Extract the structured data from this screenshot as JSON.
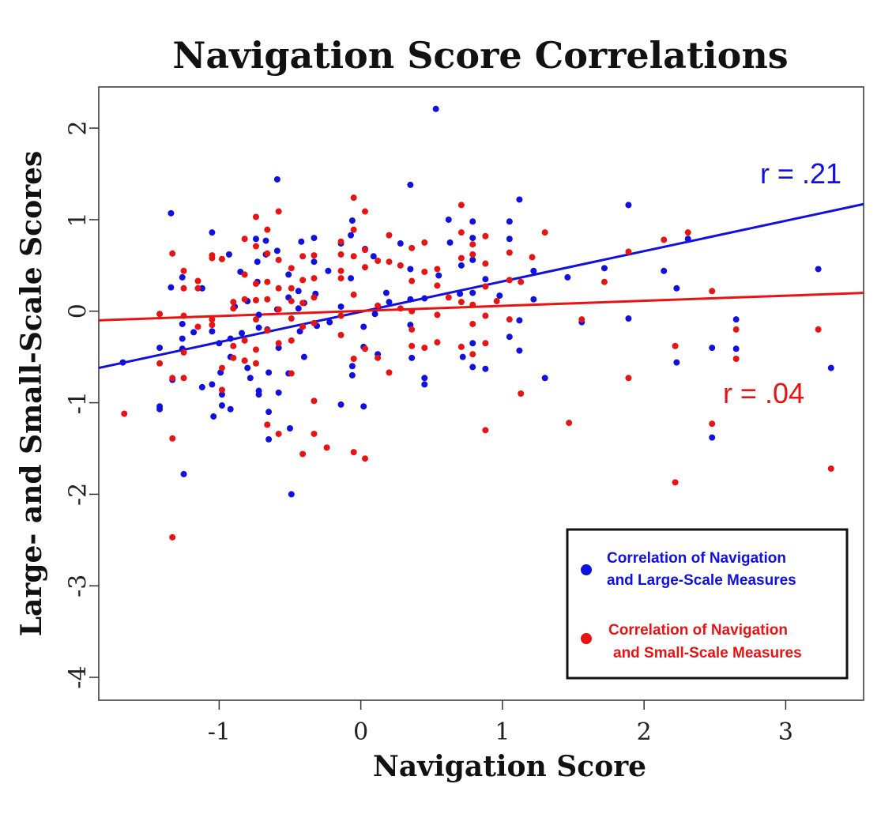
{
  "chart_data": {
    "type": "scatter",
    "title": "Navigation Score Correlations",
    "xlabel": "Navigation Score",
    "ylabel": "Large- and Small-Scale Scores",
    "xlim": [
      -1.85,
      3.55
    ],
    "ylim": [
      -4.25,
      2.45
    ],
    "xticks": [
      -1,
      0,
      1,
      2,
      3
    ],
    "yticks": [
      -4,
      -3,
      -2,
      -1,
      0,
      1,
      2
    ],
    "grid": false,
    "legend_position": "bottom-right",
    "colors": {
      "large": "#1010e0",
      "small": "#e81414"
    },
    "series": [
      {
        "name": "Correlation of Navigation and Large-Scale Measures",
        "legend_lines": [
          "Correlation of Navigation",
          "and Large-Scale Measures"
        ],
        "color": "#1010e0",
        "annotation": "r = .21",
        "fit": {
          "x": [
            -1.85,
            3.55
          ],
          "y": [
            -0.62,
            1.17
          ]
        },
        "points": [
          [
            -1.68,
            -0.56
          ],
          [
            -1.42,
            -0.4
          ],
          [
            -1.42,
            -1.04
          ],
          [
            -1.42,
            -1.07
          ],
          [
            -1.34,
            1.07
          ],
          [
            -1.34,
            0.26
          ],
          [
            -1.33,
            -0.75
          ],
          [
            -1.26,
            0.37
          ],
          [
            -1.26,
            -0.14
          ],
          [
            -1.26,
            -0.3
          ],
          [
            -1.26,
            -0.41
          ],
          [
            -1.25,
            -1.78
          ],
          [
            -1.18,
            -0.23
          ],
          [
            -1.12,
            0.25
          ],
          [
            -1.12,
            -0.83
          ],
          [
            -1.05,
            0.86
          ],
          [
            -1.05,
            -0.22
          ],
          [
            -1.05,
            -0.8
          ],
          [
            -1.04,
            -1.15
          ],
          [
            -1.0,
            -0.35
          ],
          [
            -0.99,
            -0.67
          ],
          [
            -0.98,
            -0.91
          ],
          [
            -0.98,
            -1.03
          ],
          [
            -0.93,
            0.62
          ],
          [
            -0.92,
            -0.3
          ],
          [
            -0.92,
            -0.5
          ],
          [
            -0.92,
            -1.07
          ],
          [
            -0.89,
            0.05
          ],
          [
            -0.85,
            0.43
          ],
          [
            -0.84,
            -0.24
          ],
          [
            -0.8,
            0.11
          ],
          [
            -0.8,
            -0.62
          ],
          [
            -0.78,
            -0.73
          ],
          [
            -0.74,
            0.79
          ],
          [
            -0.73,
            0.54
          ],
          [
            -0.73,
            0.32
          ],
          [
            -0.72,
            -0.04
          ],
          [
            -0.72,
            -0.18
          ],
          [
            -0.72,
            -0.87
          ],
          [
            -0.72,
            -0.91
          ],
          [
            -0.67,
            0.77
          ],
          [
            -0.67,
            0.62
          ],
          [
            -0.66,
            -0.2
          ],
          [
            -0.65,
            -0.67
          ],
          [
            -0.65,
            -1.1
          ],
          [
            -0.65,
            -1.4
          ],
          [
            -0.59,
            1.44
          ],
          [
            -0.59,
            0.66
          ],
          [
            -0.59,
            0.02
          ],
          [
            -0.58,
            -0.4
          ],
          [
            -0.58,
            -0.89
          ],
          [
            -0.51,
            0.4
          ],
          [
            -0.51,
            0.15
          ],
          [
            -0.51,
            -0.68
          ],
          [
            -0.5,
            -1.28
          ],
          [
            -0.49,
            -2.0
          ],
          [
            -0.44,
            0.22
          ],
          [
            -0.44,
            0.03
          ],
          [
            -0.43,
            -0.22
          ],
          [
            -0.42,
            0.76
          ],
          [
            -0.4,
            0.09
          ],
          [
            -0.4,
            -0.5
          ],
          [
            -0.33,
            0.8
          ],
          [
            -0.33,
            0.54
          ],
          [
            -0.32,
            0.19
          ],
          [
            -0.31,
            -0.16
          ],
          [
            -0.23,
            0.44
          ],
          [
            -0.22,
            -0.12
          ],
          [
            -0.14,
            0.74
          ],
          [
            -0.14,
            0.05
          ],
          [
            -0.14,
            -1.02
          ],
          [
            -0.07,
            0.83
          ],
          [
            -0.07,
            0.36
          ],
          [
            -0.06,
            -0.6
          ],
          [
            -0.06,
            -0.7
          ],
          [
            -0.06,
            0.99
          ],
          [
            0.02,
            -0.17
          ],
          [
            0.02,
            -0.39
          ],
          [
            0.02,
            -1.04
          ],
          [
            0.03,
            0.68
          ],
          [
            0.09,
            0.6
          ],
          [
            0.1,
            -0.03
          ],
          [
            0.12,
            -0.47
          ],
          [
            0.18,
            0.2
          ],
          [
            0.2,
            0.1
          ],
          [
            0.28,
            0.74
          ],
          [
            0.35,
            1.38
          ],
          [
            0.35,
            0.13
          ],
          [
            0.35,
            0.46
          ],
          [
            0.35,
            -0.15
          ],
          [
            0.36,
            -0.51
          ],
          [
            0.45,
            0.14
          ],
          [
            0.45,
            -0.73
          ],
          [
            0.45,
            -0.8
          ],
          [
            0.53,
            2.21
          ],
          [
            0.55,
            0.39
          ],
          [
            0.62,
            1.0
          ],
          [
            0.63,
            0.75
          ],
          [
            0.7,
            0.19
          ],
          [
            0.71,
            0.5
          ],
          [
            0.72,
            -0.5
          ],
          [
            0.79,
            0.98
          ],
          [
            0.79,
            0.8
          ],
          [
            0.79,
            0.56
          ],
          [
            0.79,
            0.2
          ],
          [
            0.79,
            -0.35
          ],
          [
            0.79,
            -0.61
          ],
          [
            0.88,
            0.35
          ],
          [
            0.88,
            -0.63
          ],
          [
            0.98,
            0.17
          ],
          [
            1.05,
            0.98
          ],
          [
            1.05,
            0.79
          ],
          [
            1.05,
            -0.28
          ],
          [
            1.12,
            1.22
          ],
          [
            1.12,
            -0.1
          ],
          [
            1.12,
            -0.43
          ],
          [
            1.22,
            0.44
          ],
          [
            1.22,
            0.13
          ],
          [
            1.3,
            -0.73
          ],
          [
            1.46,
            0.37
          ],
          [
            1.56,
            -0.12
          ],
          [
            1.72,
            0.47
          ],
          [
            1.89,
            1.16
          ],
          [
            1.89,
            -0.08
          ],
          [
            2.14,
            0.44
          ],
          [
            2.23,
            0.25
          ],
          [
            2.23,
            -0.56
          ],
          [
            2.31,
            0.79
          ],
          [
            2.48,
            -0.4
          ],
          [
            2.48,
            -1.38
          ],
          [
            2.65,
            -0.09
          ],
          [
            2.65,
            -0.41
          ],
          [
            3.23,
            0.46
          ],
          [
            3.32,
            -0.62
          ]
        ]
      },
      {
        "name": "Correlation of Navigation and Small-Scale Measures",
        "legend_lines": [
          "Correlation of Navigation",
          "and Small-Scale Measures"
        ],
        "color": "#e81414",
        "annotation": "r = .04",
        "fit": {
          "x": [
            -1.85,
            3.55
          ],
          "y": [
            -0.1,
            0.2
          ]
        },
        "points": [
          [
            -1.67,
            -1.12
          ],
          [
            -1.42,
            -0.03
          ],
          [
            -1.42,
            -0.57
          ],
          [
            -1.33,
            0.63
          ],
          [
            -1.33,
            -0.73
          ],
          [
            -1.33,
            -1.39
          ],
          [
            -1.33,
            -2.47
          ],
          [
            -1.25,
            0.44
          ],
          [
            -1.25,
            0.25
          ],
          [
            -1.25,
            -0.05
          ],
          [
            -1.25,
            -0.45
          ],
          [
            -1.25,
            -0.73
          ],
          [
            -1.15,
            0.33
          ],
          [
            -1.15,
            0.25
          ],
          [
            -1.15,
            -0.17
          ],
          [
            -1.05,
            0.61
          ],
          [
            -1.05,
            0.58
          ],
          [
            -1.05,
            -0.09
          ],
          [
            -1.05,
            -0.15
          ],
          [
            -0.98,
            0.57
          ],
          [
            -0.98,
            -0.62
          ],
          [
            -0.98,
            -0.86
          ],
          [
            -0.9,
            0.1
          ],
          [
            -0.9,
            0.03
          ],
          [
            -0.9,
            -0.38
          ],
          [
            -0.9,
            -0.51
          ],
          [
            -0.82,
            0.79
          ],
          [
            -0.82,
            0.4
          ],
          [
            -0.82,
            0.13
          ],
          [
            -0.82,
            -0.32
          ],
          [
            -0.82,
            -0.54
          ],
          [
            -0.74,
            1.03
          ],
          [
            -0.74,
            0.71
          ],
          [
            -0.74,
            0.3
          ],
          [
            -0.74,
            0.12
          ],
          [
            -0.74,
            -0.09
          ],
          [
            -0.74,
            -0.42
          ],
          [
            -0.74,
            -0.57
          ],
          [
            -0.66,
            0.89
          ],
          [
            -0.66,
            0.63
          ],
          [
            -0.66,
            0.32
          ],
          [
            -0.66,
            0.13
          ],
          [
            -0.66,
            -0.21
          ],
          [
            -0.66,
            -1.24
          ],
          [
            -0.58,
            1.09
          ],
          [
            -0.58,
            0.56
          ],
          [
            -0.58,
            0.25
          ],
          [
            -0.58,
            0.02
          ],
          [
            -0.58,
            -0.35
          ],
          [
            -0.58,
            -1.34
          ],
          [
            -0.49,
            0.47
          ],
          [
            -0.49,
            0.25
          ],
          [
            -0.49,
            0.11
          ],
          [
            -0.49,
            -0.08
          ],
          [
            -0.49,
            -0.32
          ],
          [
            -0.49,
            -0.68
          ],
          [
            -0.41,
            0.6
          ],
          [
            -0.41,
            0.34
          ],
          [
            -0.41,
            0.09
          ],
          [
            -0.41,
            -0.17
          ],
          [
            -0.41,
            -1.56
          ],
          [
            -0.33,
            0.61
          ],
          [
            -0.33,
            0.36
          ],
          [
            -0.33,
            0.15
          ],
          [
            -0.33,
            -0.13
          ],
          [
            -0.33,
            -0.98
          ],
          [
            -0.33,
            -1.34
          ],
          [
            -0.24,
            -1.49
          ],
          [
            -0.14,
            0.76
          ],
          [
            -0.14,
            0.62
          ],
          [
            -0.14,
            0.44
          ],
          [
            -0.14,
            0.36
          ],
          [
            -0.14,
            -0.05
          ],
          [
            -0.14,
            -0.26
          ],
          [
            -0.05,
            1.24
          ],
          [
            -0.05,
            0.89
          ],
          [
            -0.05,
            0.6
          ],
          [
            -0.05,
            0.18
          ],
          [
            -0.05,
            -0.52
          ],
          [
            -0.05,
            -1.54
          ],
          [
            0.03,
            1.09
          ],
          [
            0.03,
            0.67
          ],
          [
            0.03,
            0.48
          ],
          [
            0.03,
            -0.41
          ],
          [
            0.03,
            -1.61
          ],
          [
            0.12,
            0.55
          ],
          [
            0.12,
            0.06
          ],
          [
            0.12,
            -0.51
          ],
          [
            0.2,
            0.83
          ],
          [
            0.2,
            0.54
          ],
          [
            0.2,
            -0.67
          ],
          [
            0.28,
            0.5
          ],
          [
            0.28,
            0.03
          ],
          [
            0.36,
            0.69
          ],
          [
            0.36,
            0.33
          ],
          [
            0.36,
            0.0
          ],
          [
            0.36,
            -0.2
          ],
          [
            0.36,
            -0.38
          ],
          [
            0.45,
            0.75
          ],
          [
            0.45,
            0.43
          ],
          [
            0.45,
            -0.4
          ],
          [
            0.54,
            0.46
          ],
          [
            0.54,
            0.28
          ],
          [
            0.54,
            -0.04
          ],
          [
            0.54,
            -0.34
          ],
          [
            0.62,
            0.15
          ],
          [
            0.71,
            1.16
          ],
          [
            0.71,
            0.86
          ],
          [
            0.71,
            0.58
          ],
          [
            0.71,
            0.1
          ],
          [
            0.71,
            -0.39
          ],
          [
            0.79,
            0.73
          ],
          [
            0.79,
            0.62
          ],
          [
            0.79,
            0.07
          ],
          [
            0.79,
            -0.14
          ],
          [
            0.79,
            -0.47
          ],
          [
            0.88,
            0.82
          ],
          [
            0.88,
            0.52
          ],
          [
            0.88,
            0.27
          ],
          [
            0.88,
            -0.05
          ],
          [
            0.88,
            -0.35
          ],
          [
            0.88,
            -1.3
          ],
          [
            0.96,
            0.11
          ],
          [
            1.05,
            0.64
          ],
          [
            1.05,
            0.34
          ],
          [
            1.05,
            -0.09
          ],
          [
            1.13,
            0.32
          ],
          [
            1.13,
            -0.9
          ],
          [
            1.21,
            0.59
          ],
          [
            1.3,
            0.86
          ],
          [
            1.47,
            -1.22
          ],
          [
            1.56,
            -0.09
          ],
          [
            1.72,
            0.32
          ],
          [
            1.89,
            0.65
          ],
          [
            1.89,
            -0.73
          ],
          [
            2.14,
            0.78
          ],
          [
            2.22,
            -0.38
          ],
          [
            2.22,
            -1.87
          ],
          [
            2.31,
            0.86
          ],
          [
            2.48,
            0.22
          ],
          [
            2.48,
            -1.23
          ],
          [
            2.65,
            -0.2
          ],
          [
            2.65,
            -0.52
          ],
          [
            3.23,
            -0.2
          ],
          [
            3.32,
            -1.72
          ]
        ]
      }
    ]
  }
}
